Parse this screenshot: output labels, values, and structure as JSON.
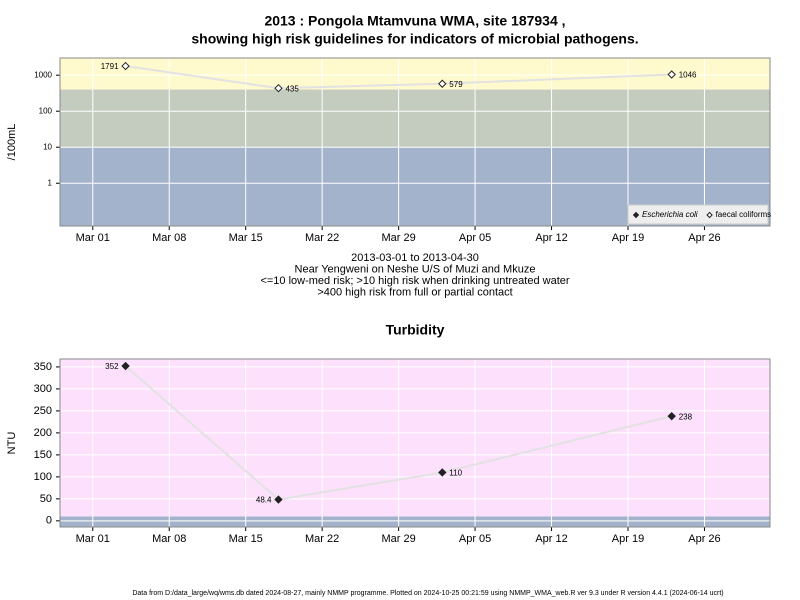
{
  "chart_data": [
    {
      "type": "line",
      "title": [
        "2013 : Pongola Mtamvuna WMA, site 187934 ,",
        "showing high risk guidelines for indicators of microbial pathogens."
      ],
      "subtitle": [
        "2013-03-01 to 2013-04-30",
        "Near Yengweni on Neshe U/S of Muzi and Mkuze",
        "<=10 low-med risk; >10 high risk when drinking untreated water",
        ">400 high risk from full or partial contact"
      ],
      "ylabel": "/100mL",
      "log": true,
      "grid": true,
      "legend": "bottom right",
      "bands": [
        {
          "from": 0.065,
          "to": 10,
          "color": "#a3b3cc"
        },
        {
          "from": 10,
          "to": 400,
          "color": "#c4ccc0"
        },
        {
          "from": 400,
          "to": 3000,
          "color": "#fffacd"
        }
      ],
      "xlim": [
        "2013-02-26",
        "2013-05-02"
      ],
      "ylim": [
        0.065,
        3000
      ],
      "xticks": [
        {
          "value": "2013-03-01",
          "label": "Mar 01"
        },
        {
          "value": "2013-03-08",
          "label": "Mar 08"
        },
        {
          "value": "2013-03-15",
          "label": "Mar 15"
        },
        {
          "value": "2013-03-22",
          "label": "Mar 22"
        },
        {
          "value": "2013-03-29",
          "label": "Mar 29"
        },
        {
          "value": "2013-04-05",
          "label": "Apr 05"
        },
        {
          "value": "2013-04-12",
          "label": "Apr 12"
        },
        {
          "value": "2013-04-19",
          "label": "Apr 19"
        },
        {
          "value": "2013-04-26",
          "label": "Apr 26"
        }
      ],
      "yticks": [
        1,
        10,
        100,
        1000
      ],
      "x": [
        "2013-03-04",
        "2013-03-18",
        "2013-04-02",
        "2013-04-23"
      ],
      "series": [
        {
          "name": "Escherichia coli",
          "color": "#222222",
          "marker": "filled",
          "values": [
            null,
            null,
            null,
            null
          ]
        },
        {
          "name": "faecal coliforms",
          "color": "#222222",
          "marker": "open",
          "values": [
            1791,
            435,
            579,
            1046
          ]
        }
      ]
    },
    {
      "type": "line",
      "title": [
        "Turbidity"
      ],
      "ylabel": "NTU",
      "log": false,
      "grid": true,
      "bands": [
        {
          "from": -14,
          "to": 10,
          "color": "#a3b3cc"
        },
        {
          "from": 10,
          "to": 368,
          "color": "#fce0fc"
        }
      ],
      "xlim": [
        "2013-02-26",
        "2013-05-02"
      ],
      "ylim": [
        -14,
        368
      ],
      "xticks": [
        {
          "value": "2013-03-01",
          "label": "Mar 01"
        },
        {
          "value": "2013-03-08",
          "label": "Mar 08"
        },
        {
          "value": "2013-03-15",
          "label": "Mar 15"
        },
        {
          "value": "2013-03-22",
          "label": "Mar 22"
        },
        {
          "value": "2013-03-29",
          "label": "Mar 29"
        },
        {
          "value": "2013-04-05",
          "label": "Apr 05"
        },
        {
          "value": "2013-04-12",
          "label": "Apr 12"
        },
        {
          "value": "2013-04-19",
          "label": "Apr 19"
        },
        {
          "value": "2013-04-26",
          "label": "Apr 26"
        }
      ],
      "yticks": [
        0,
        50,
        100,
        150,
        200,
        250,
        300,
        350
      ],
      "x": [
        "2013-03-04",
        "2013-03-18",
        "2013-04-02",
        "2013-04-23"
      ],
      "series": [
        {
          "name": "Turbidity",
          "color": "#222222",
          "marker": "filled",
          "values": [
            352,
            48.4,
            110,
            238
          ]
        }
      ]
    }
  ],
  "footer": "Data from D:/data_large/wq/wms.db dated 2024-08-27, mainly NMMP programme. Plotted on 2024-10-25 00:21:59 using NMMP_WMA_web.R ver 9.3 under R version 4.4.1 (2024-06-14 ucrt)"
}
